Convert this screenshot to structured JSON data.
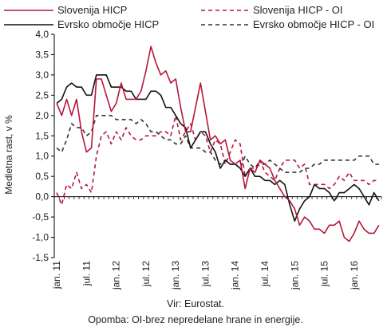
{
  "chart_data": {
    "type": "line",
    "ylabel": "Medletna rast, v %",
    "ylim": [
      -1.5,
      4.0
    ],
    "yticks": [
      "4,0",
      "3,5",
      "3,0",
      "2,5",
      "2,0",
      "1,5",
      "1,0",
      "0,5",
      "0,0",
      "-0,5",
      "-1,0",
      "-1,5"
    ],
    "xtick_labels": [
      "jan. 11",
      "jul. 11",
      "jan. 12",
      "jul. 12",
      "jan. 13",
      "jul. 13",
      "jan. 14",
      "jul. 14",
      "jan. 15",
      "jul. 15",
      "jan. 16"
    ],
    "x_start": "2011-01",
    "x_end": "2016-06",
    "grid": false,
    "legend_position": "top",
    "series": [
      {
        "name": "Slovenija HICP",
        "color": "#b5173b",
        "dash": "solid",
        "values": [
          2.3,
          2.0,
          2.4,
          2.0,
          2.4,
          1.6,
          1.1,
          1.2,
          2.9,
          2.9,
          2.5,
          2.1,
          2.3,
          2.8,
          2.4,
          2.4,
          2.4,
          2.6,
          3.1,
          3.7,
          3.3,
          3.0,
          3.1,
          2.8,
          2.9,
          2.2,
          1.6,
          1.6,
          2.2,
          2.8,
          2.1,
          1.4,
          1.5,
          1.3,
          1.4,
          0.9,
          0.8,
          0.9,
          0.2,
          0.7,
          0.6,
          0.9,
          0.8,
          0.7,
          0.4,
          0.2,
          0.0,
          -0.1,
          -0.3,
          -0.7,
          -0.5,
          -0.6,
          -0.8,
          -0.8,
          -0.9,
          -0.7,
          -0.7,
          -0.6,
          -1.0,
          -1.1,
          -0.9,
          -0.6,
          -0.8,
          -0.9,
          -0.9,
          -0.7
        ]
      },
      {
        "name": "Slovenija HICP - OI",
        "color": "#b5173b",
        "dash": "dashed",
        "values": [
          0.1,
          -0.2,
          0.3,
          0.2,
          0.6,
          0.2,
          0.3,
          0.1,
          1.0,
          1.5,
          1.6,
          1.3,
          1.6,
          1.4,
          1.7,
          1.5,
          1.4,
          1.4,
          1.5,
          1.5,
          1.5,
          1.6,
          1.6,
          1.5,
          2.0,
          1.4,
          1.6,
          1.8,
          1.4,
          1.6,
          1.5,
          1.1,
          1.4,
          1.3,
          0.8,
          1.1,
          1.4,
          1.3,
          0.5,
          0.7,
          0.7,
          0.9,
          0.6,
          0.5,
          0.4,
          0.7,
          0.9,
          0.9,
          0.9,
          0.7,
          0.8,
          0.3,
          0.3,
          0.3,
          0.3,
          0.2,
          0.3,
          0.5,
          0.4,
          0.6,
          0.4,
          0.4,
          0.4,
          0.3,
          0.4,
          0.4
        ]
      },
      {
        "name": "Evrsko območje HICP",
        "color": "#111111",
        "dash": "solid",
        "values": [
          2.3,
          2.4,
          2.7,
          2.8,
          2.7,
          2.7,
          2.5,
          2.5,
          3.0,
          3.0,
          3.0,
          2.7,
          2.7,
          2.7,
          2.6,
          2.6,
          2.4,
          2.4,
          2.4,
          2.6,
          2.6,
          2.5,
          2.2,
          2.2,
          2.0,
          1.8,
          1.7,
          1.2,
          1.4,
          1.6,
          1.6,
          1.3,
          1.1,
          0.7,
          0.9,
          0.8,
          0.8,
          0.7,
          0.5,
          0.7,
          0.5,
          0.5,
          0.4,
          0.4,
          0.3,
          0.4,
          0.3,
          -0.2,
          -0.6,
          -0.3,
          -0.1,
          0.0,
          0.3,
          0.2,
          0.2,
          0.1,
          -0.1,
          0.1,
          0.1,
          0.2,
          0.3,
          0.2,
          0.0,
          -0.2,
          0.1,
          -0.1
        ]
      },
      {
        "name": "Evrsko območje HICP - OI",
        "color": "#333333",
        "dash": "dashed",
        "values": [
          1.2,
          1.1,
          1.4,
          1.8,
          1.7,
          1.7,
          1.5,
          1.6,
          2.0,
          2.0,
          2.0,
          2.0,
          1.9,
          1.9,
          1.9,
          1.9,
          1.8,
          1.9,
          1.8,
          1.6,
          1.6,
          1.5,
          1.4,
          1.4,
          1.3,
          1.3,
          1.5,
          1.2,
          1.2,
          1.2,
          1.1,
          1.1,
          0.9,
          0.8,
          0.9,
          0.8,
          0.8,
          0.7,
          1.0,
          0.8,
          0.7,
          0.8,
          0.8,
          0.9,
          0.8,
          0.7,
          0.6,
          0.6,
          0.6,
          0.6,
          0.7,
          0.7,
          0.8,
          0.8,
          0.9,
          0.9,
          0.9,
          0.9,
          0.9,
          0.9,
          0.9,
          1.0,
          1.0,
          1.0,
          0.8,
          0.8
        ]
      }
    ]
  },
  "note": {
    "source": "Vir: Eurostat.",
    "remark": "Opomba: OI-brez nepredelane hrane in energije."
  }
}
